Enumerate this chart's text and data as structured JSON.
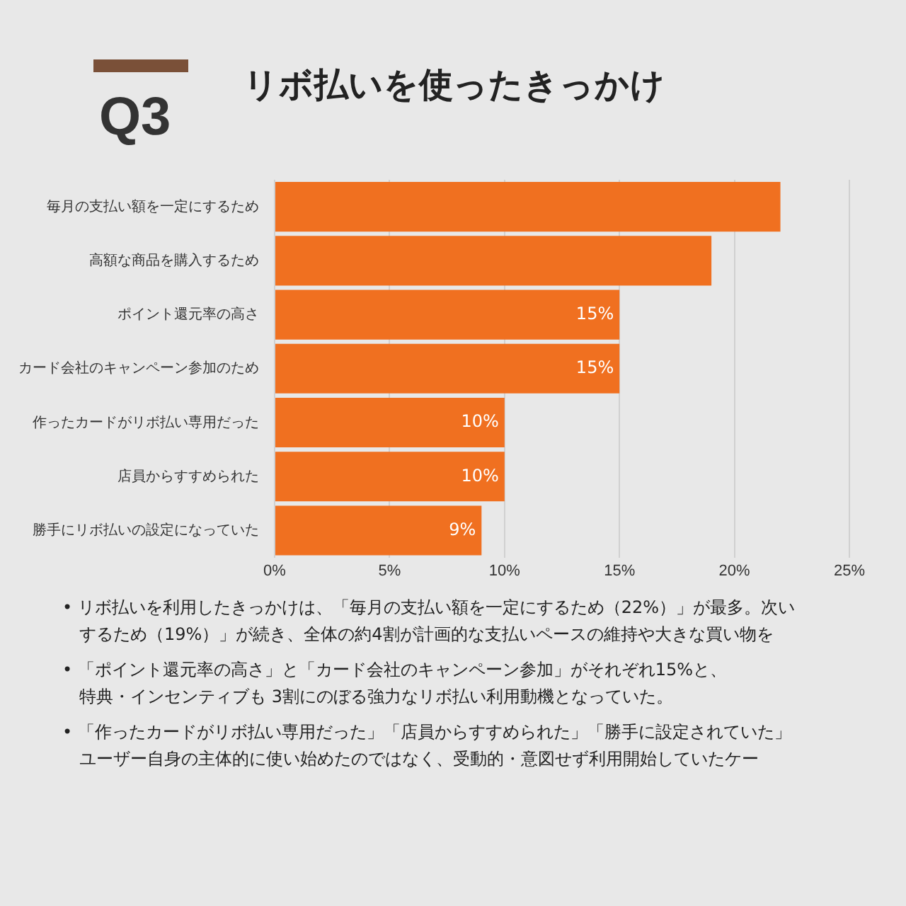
{
  "chart_data": {
    "type": "bar",
    "orientation": "horizontal",
    "title": "リボ払いを使ったきっかけ",
    "subtitle": "Q3",
    "categories": [
      "毎月の支払い額を一定にするため",
      "高額な商品を購入するため",
      "ポイント還元率の高さ",
      "カード会社のキャンペーン参加のため",
      "作ったカードがリボ払い専用だった",
      "店員からすすめられた",
      "勝手にリボ払いの設定になっていた"
    ],
    "values": [
      22,
      19,
      15,
      15,
      10,
      10,
      9
    ],
    "value_labels": [
      null,
      null,
      "15%",
      "15%",
      "10%",
      "10%",
      "9%"
    ],
    "color": "#f07020",
    "xlim": [
      0,
      25
    ],
    "xticks": [
      {
        "value": 0,
        "label": "0%"
      },
      {
        "value": 5,
        "label": "5%"
      },
      {
        "value": 10,
        "label": "10%"
      },
      {
        "value": 15,
        "label": "15%"
      },
      {
        "value": 20,
        "label": "20%"
      },
      {
        "value": 25,
        "label": "25%"
      }
    ],
    "grid": "x",
    "legend": false,
    "annotations": [
      "• リボ払いを利用したきっかけは、「毎月の支払い額を一定にするため（22%）」が最多。次い",
      "するため（19%）」が続き、全体の約4割が計画的な支払いペースの維持や大きな買い物を",
      "• 「ポイント還元率の高さ」と「カード会社のキャンペーン参加」がそれぞれ15%と、",
      "特典・インセンティブも 3割にのぼる強力なリボ払い利用動機となっていた。",
      "• 「作ったカードがリボ払い専用だった」「店員からすすめられた」「勝手に設定されていた」",
      "ユーザー自身の主体的に使い始めたのではなく、受動的・意図せず利用開始していたケー"
    ]
  }
}
